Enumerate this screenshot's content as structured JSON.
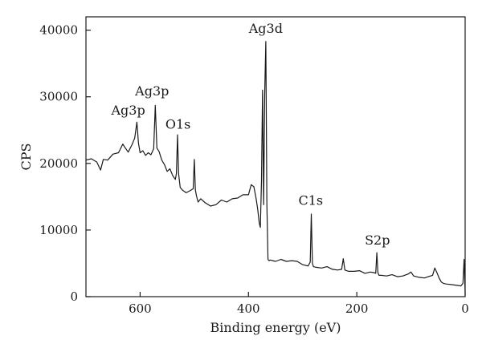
{
  "chart_data": {
    "type": "line",
    "xlabel": "Binding energy (eV)",
    "ylabel": "CPS",
    "xlim": [
      700,
      0
    ],
    "ylim": [
      0,
      42000
    ],
    "x_reversed": true,
    "grid": false,
    "legend": "none",
    "xticks": [
      600,
      400,
      200,
      0
    ],
    "yticks": [
      0,
      10000,
      20000,
      30000,
      40000
    ],
    "line_color": "#1a1a1a",
    "annotations": [
      {
        "text": "Ag3p",
        "x": 622,
        "y": 27300
      },
      {
        "text": "Ag3p",
        "x": 578,
        "y": 30200
      },
      {
        "text": "O1s",
        "x": 530,
        "y": 25200
      },
      {
        "text": "Ag3d",
        "x": 368,
        "y": 39600
      },
      {
        "text": "C1s",
        "x": 285,
        "y": 13800
      },
      {
        "text": "S2p",
        "x": 162,
        "y": 7800
      }
    ],
    "series": [
      {
        "x": [
          700,
          690,
          680,
          673,
          668,
          660,
          650,
          640,
          632,
          628,
          622,
          615,
          610,
          606,
          603,
          600,
          595,
          590,
          585,
          580,
          575,
          572,
          569,
          565,
          560,
          555,
          550,
          545,
          540,
          535,
          533,
          531,
          529,
          526,
          522,
          515,
          508,
          502,
          500,
          498,
          496,
          493,
          488,
          480,
          470,
          460,
          450,
          440,
          430,
          420,
          410,
          400,
          395,
          390,
          386,
          383,
          380,
          378,
          376,
          374,
          372,
          370,
          368,
          366,
          364,
          362,
          360,
          350,
          340,
          330,
          320,
          310,
          300,
          290,
          286,
          284,
          282,
          280,
          275,
          265,
          255,
          245,
          235,
          228,
          225,
          222,
          215,
          205,
          195,
          185,
          175,
          168,
          165,
          163,
          161,
          159,
          155,
          145,
          135,
          125,
          115,
          105,
          100,
          95,
          85,
          75,
          68,
          60,
          56,
          52,
          48,
          44,
          40,
          35,
          25,
          15,
          8,
          4,
          2,
          0
        ],
        "y": [
          20500,
          20700,
          20200,
          19000,
          20600,
          20500,
          21400,
          21600,
          22900,
          22400,
          21700,
          22800,
          23800,
          26200,
          23000,
          21600,
          21900,
          21200,
          21600,
          21300,
          22200,
          28700,
          22300,
          21800,
          20500,
          19800,
          18800,
          19200,
          18200,
          17600,
          18500,
          24300,
          18500,
          16400,
          16000,
          15600,
          15900,
          16200,
          20600,
          16000,
          15100,
          14200,
          14700,
          14100,
          13600,
          13800,
          14500,
          14200,
          14700,
          14800,
          15300,
          15300,
          16800,
          16500,
          14800,
          13200,
          11000,
          10400,
          17400,
          31000,
          13800,
          30500,
          38300,
          14000,
          5600,
          5400,
          5500,
          5300,
          5600,
          5300,
          5400,
          5300,
          4800,
          4600,
          5200,
          12400,
          5000,
          4500,
          4400,
          4300,
          4500,
          4100,
          4000,
          4100,
          5700,
          4000,
          3800,
          3800,
          3900,
          3500,
          3700,
          3600,
          3500,
          6600,
          3600,
          3200,
          3200,
          3100,
          3300,
          3000,
          3100,
          3400,
          3700,
          3100,
          2900,
          2800,
          3000,
          3200,
          4300,
          3600,
          2800,
          2200,
          2000,
          1900,
          1800,
          1700,
          1600,
          2000,
          5600,
          700
        ]
      }
    ]
  }
}
